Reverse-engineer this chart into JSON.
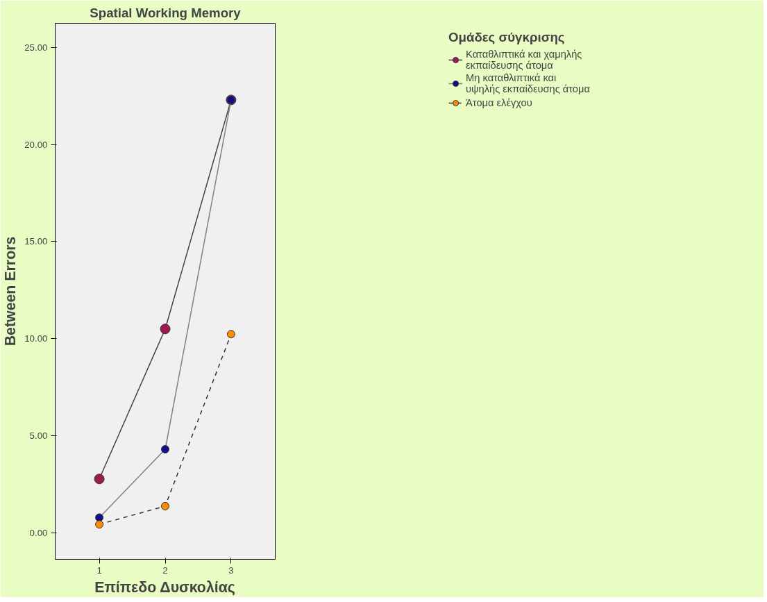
{
  "chart_data": {
    "type": "line",
    "title": "Spatial Working Memory",
    "xlabel": "Επίπεδο Δυσκολίας",
    "ylabel": "Between Errors",
    "legend_title": "Ομάδες σύγκρισης",
    "x": [
      1,
      2,
      3
    ],
    "series": [
      {
        "name": "Καταθλιπτικά και χαμηλής εκπαίδευσης άτομα",
        "color": "#9b1b52",
        "values": [
          2.77,
          10.5,
          22.3
        ]
      },
      {
        "name": "Μη καταθλιπτικά και υψηλής εκπαίδευσης άτομα",
        "color": "#10108a",
        "values": [
          0.78,
          4.3,
          22.3
        ]
      },
      {
        "name": "Άτομα ελέγχου",
        "color": "#ff8c00",
        "values": [
          0.43,
          1.37,
          10.23
        ],
        "line_style": "dashed"
      }
    ],
    "xlim": [
      0.33,
      3.67
    ],
    "xticks": [
      1,
      2,
      3
    ],
    "ylim": [
      -1.37,
      26.25
    ],
    "yticks": [
      {
        "value": 0,
        "label": "0.00"
      },
      {
        "value": 5,
        "label": "5.00"
      },
      {
        "value": 10,
        "label": "10.00"
      },
      {
        "value": 15,
        "label": "15.00"
      },
      {
        "value": 20,
        "label": "20.00"
      },
      {
        "value": 25,
        "label": "25.00"
      }
    ],
    "grid": false,
    "legend": "top right",
    "marker": "circle"
  }
}
